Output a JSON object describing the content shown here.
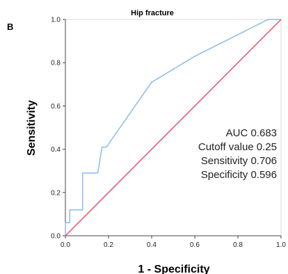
{
  "chart_data": {
    "type": "line",
    "panel_label": "B",
    "title": "Hip fracture",
    "xlabel": "1 - Specificity",
    "ylabel": "Sensitivity",
    "xlim": [
      0,
      1
    ],
    "ylim": [
      0,
      1
    ],
    "xticks": [
      "0.0",
      "0.2",
      "0.4",
      "0.6",
      "0.8",
      "1.0"
    ],
    "yticks": [
      "0.0",
      "0.2",
      "0.4",
      "0.6",
      "0.8",
      "1.0"
    ],
    "grid": false,
    "series": [
      {
        "color": "#8bbbe8",
        "x": [
          0,
          0,
          0.02,
          0.02,
          0.08,
          0.08,
          0.15,
          0.17,
          0.17,
          0.19,
          0.4,
          0.6,
          0.94,
          1.0
        ],
        "y": [
          0,
          0.06,
          0.06,
          0.12,
          0.12,
          0.29,
          0.29,
          0.41,
          0.41,
          0.41,
          0.71,
          0.83,
          1.0,
          1.0
        ]
      },
      {
        "color": "#e8506b",
        "x": [
          0,
          1
        ],
        "y": [
          0,
          1
        ]
      }
    ],
    "annotations": [
      "AUC 0.683",
      "Cutoff value 0.25",
      "Sensitivity 0.706",
      "Specificity 0.596"
    ]
  }
}
